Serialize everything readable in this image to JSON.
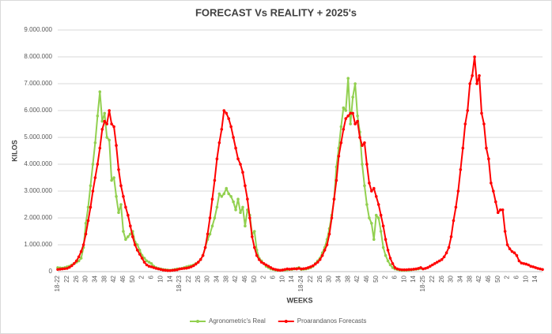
{
  "chart_data": {
    "type": "line",
    "title": "FORECAST Vs REALITY + 2025's",
    "xlabel": "WEEKS",
    "ylabel": "KILOS",
    "categories": [
      "18-22",
      null,
      null,
      null,
      "22",
      null,
      null,
      null,
      "26",
      null,
      null,
      null,
      "30",
      null,
      null,
      null,
      "34",
      null,
      null,
      null,
      "38",
      null,
      null,
      null,
      "42",
      null,
      null,
      null,
      "46",
      null,
      null,
      null,
      "50",
      null,
      null,
      null,
      "2",
      null,
      null,
      null,
      "6",
      null,
      null,
      null,
      "10",
      null,
      null,
      null,
      "14",
      null,
      null,
      null,
      "18-23",
      null,
      null,
      null,
      "22",
      null,
      null,
      null,
      "26",
      null,
      null,
      null,
      "30",
      null,
      null,
      null,
      "34",
      null,
      null,
      null,
      "38",
      null,
      null,
      null,
      "42",
      null,
      null,
      null,
      "46",
      null,
      null,
      null,
      "50",
      null,
      null,
      null,
      "2",
      null,
      null,
      null,
      "6",
      null,
      null,
      null,
      "10",
      null,
      null,
      null,
      "14",
      null,
      null,
      null,
      "18-24",
      null,
      null,
      null,
      "22",
      null,
      null,
      null,
      "26",
      null,
      null,
      null,
      "30",
      null,
      null,
      null,
      "34",
      null,
      null,
      null,
      "38",
      null,
      null,
      null,
      "42",
      null,
      null,
      null,
      "46",
      null,
      null,
      null,
      "50",
      null,
      null,
      null,
      "2",
      null,
      null,
      null,
      "6",
      null,
      null,
      null,
      "10",
      null,
      null,
      null,
      "14",
      null,
      null,
      null,
      "18-25",
      null,
      null,
      null,
      "22",
      null,
      null,
      null,
      "26",
      null,
      null,
      null,
      "30",
      null,
      null,
      null,
      "34",
      null,
      null,
      null,
      "38",
      null,
      null,
      null,
      "42",
      null,
      null,
      null,
      "46",
      null,
      null,
      null,
      "50",
      null,
      null,
      null,
      "2",
      null,
      null,
      null,
      "6",
      null,
      null,
      null,
      "10",
      null,
      null,
      null,
      "14",
      null,
      null,
      null
    ],
    "series": [
      {
        "name": "Agronometric's Real",
        "color": "#92d050",
        "values": [
          150000,
          140000,
          130000,
          150000,
          180000,
          200000,
          250000,
          300000,
          350000,
          400000,
          500000,
          900000,
          1800000,
          2400000,
          3200000,
          4000000,
          4800000,
          5800000,
          6700000,
          5600000,
          5900000,
          5000000,
          4900000,
          3400000,
          3500000,
          2800000,
          2200000,
          2500000,
          1500000,
          1200000,
          1300000,
          1400000,
          1500000,
          1100000,
          1000000,
          800000,
          600000,
          500000,
          400000,
          350000,
          300000,
          200000,
          150000,
          120000,
          100000,
          80000,
          70000,
          60000,
          50000,
          60000,
          80000,
          100000,
          100000,
          120000,
          150000,
          180000,
          200000,
          220000,
          250000,
          300000,
          350000,
          450000,
          600000,
          900000,
          1200000,
          1400000,
          1700000,
          2000000,
          2400000,
          2900000,
          2800000,
          2900000,
          3100000,
          2900000,
          2800000,
          2600000,
          2300000,
          2700000,
          2200000,
          2400000,
          1700000,
          2300000,
          2100000,
          1400000,
          1500000,
          800000,
          500000,
          400000,
          300000,
          200000,
          150000,
          100000,
          80000,
          60000,
          50000,
          50000,
          60000,
          60000,
          70000,
          80000,
          80000,
          100000,
          120000,
          150000,
          80000,
          90000,
          100000,
          120000,
          150000,
          200000,
          300000,
          400000,
          500000,
          700000,
          900000,
          1200000,
          1600000,
          2100000,
          2700000,
          3900000,
          4600000,
          5400000,
          6100000,
          6000000,
          7200000,
          5500000,
          6500000,
          7000000,
          5800000,
          5200000,
          4000000,
          3200000,
          2500000,
          2000000,
          1800000,
          1200000,
          2100000,
          2000000,
          1500000,
          900000,
          600000,
          400000,
          250000,
          150000,
          100000,
          80000,
          60000,
          50000,
          50000,
          60000,
          60000,
          70000,
          80000,
          90000,
          100000,
          120000,
          null,
          null,
          null,
          null,
          null,
          null,
          null,
          null,
          null,
          null,
          null,
          null,
          null,
          null,
          null,
          null,
          null,
          null,
          null,
          null,
          null,
          null,
          null,
          null,
          null,
          null,
          null,
          null,
          null,
          null,
          null,
          null,
          null,
          null,
          null,
          null,
          null,
          null,
          null,
          null,
          null,
          null,
          null,
          null,
          null,
          null,
          null,
          null,
          null,
          null,
          null,
          null
        ]
      },
      {
        "name": "Proarandanos Forecasts",
        "color": "#ff0000",
        "values": [
          80000,
          90000,
          100000,
          110000,
          120000,
          160000,
          220000,
          300000,
          400000,
          550000,
          750000,
          1000000,
          1400000,
          1900000,
          2400000,
          3000000,
          3500000,
          4000000,
          4600000,
          5300000,
          5600000,
          5500000,
          6000000,
          5500000,
          5400000,
          4700000,
          3800000,
          3200000,
          2800000,
          2400000,
          2100000,
          1700000,
          1300000,
          1000000,
          800000,
          650000,
          500000,
          350000,
          250000,
          200000,
          180000,
          150000,
          120000,
          100000,
          80000,
          60000,
          50000,
          40000,
          40000,
          50000,
          60000,
          70000,
          100000,
          110000,
          120000,
          130000,
          150000,
          180000,
          220000,
          280000,
          350000,
          450000,
          600000,
          900000,
          1400000,
          2000000,
          2700000,
          3400000,
          4200000,
          4800000,
          5300000,
          6000000,
          5900000,
          5700000,
          5400000,
          5000000,
          4600000,
          4200000,
          4000000,
          3700000,
          3200000,
          2700000,
          2000000,
          1300000,
          900000,
          600000,
          450000,
          350000,
          300000,
          250000,
          200000,
          150000,
          100000,
          80000,
          60000,
          50000,
          60000,
          80000,
          100000,
          90000,
          100000,
          110000,
          100000,
          120000,
          100000,
          110000,
          120000,
          150000,
          180000,
          220000,
          280000,
          350000,
          450000,
          600000,
          800000,
          1000000,
          1400000,
          2000000,
          2700000,
          3400000,
          4300000,
          4800000,
          5300000,
          5700000,
          5800000,
          5900000,
          5900000,
          5500000,
          5600000,
          5000000,
          4700000,
          4800000,
          4000000,
          3300000,
          3000000,
          3100000,
          2800000,
          2500000,
          2100000,
          1700000,
          1200000,
          800000,
          500000,
          300000,
          150000,
          100000,
          80000,
          70000,
          70000,
          70000,
          80000,
          80000,
          90000,
          100000,
          120000,
          150000,
          100000,
          120000,
          150000,
          200000,
          250000,
          300000,
          350000,
          400000,
          450000,
          550000,
          700000,
          900000,
          1300000,
          1900000,
          2400000,
          3000000,
          3800000,
          4600000,
          5500000,
          6000000,
          7000000,
          7300000,
          8000000,
          7000000,
          7300000,
          5900000,
          5500000,
          4600000,
          4200000,
          3300000,
          3000000,
          2600000,
          2200000,
          2300000,
          2300000,
          1500000,
          1000000,
          850000,
          750000,
          700000,
          600000,
          400000,
          320000,
          300000,
          280000,
          250000,
          200000,
          180000,
          150000,
          120000,
          100000,
          80000
        ]
      }
    ],
    "ylim": [
      0,
      9000000
    ],
    "yticks": [
      {
        "value": 0,
        "label": "0"
      },
      {
        "value": 1000000,
        "label": "1.000.000"
      },
      {
        "value": 2000000,
        "label": "2.000.000"
      },
      {
        "value": 3000000,
        "label": "3.000.000"
      },
      {
        "value": 4000000,
        "label": "4.000.000"
      },
      {
        "value": 5000000,
        "label": "5.000.000"
      },
      {
        "value": 6000000,
        "label": "6.000.000"
      },
      {
        "value": 7000000,
        "label": "7.000.000"
      },
      {
        "value": 8000000,
        "label": "8.000.000"
      },
      {
        "value": 9000000,
        "label": "9.000.000"
      }
    ],
    "grid": true,
    "legend": "bottom"
  }
}
